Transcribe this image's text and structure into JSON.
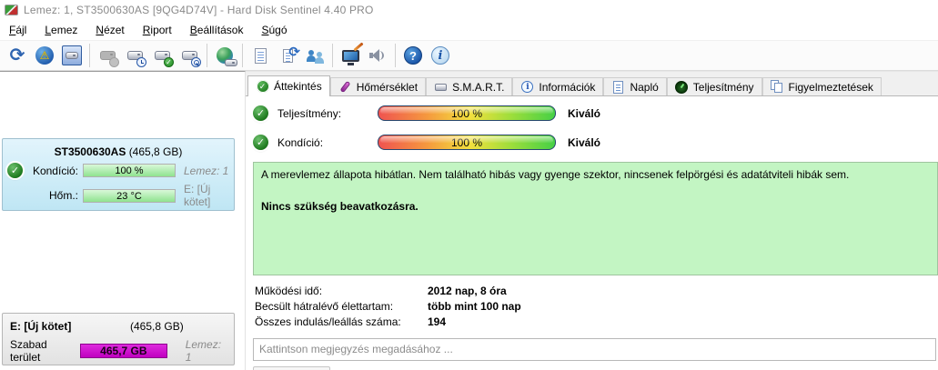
{
  "titlebar": {
    "title": "Lemez: 1, ST3500630AS [9QG4D74V]  -  Hard Disk Sentinel 4.40 PRO"
  },
  "menu": {
    "items": [
      "Fájl",
      "Lemez",
      "Nézet",
      "Riport",
      "Beállítások",
      "Súgó"
    ]
  },
  "toolbar": {
    "buttons": [
      "refresh-icon",
      "warning-icon",
      "disk-box-icon",
      "disk-gray-icon",
      "disk-clock-icon",
      "disk-check-icon",
      "disk-search-icon",
      "globe-disk-icon",
      "report-icon",
      "sync-icon",
      "users-icon",
      "monitor-pen-icon",
      "speaker-icon",
      "help-icon",
      "info-icon"
    ]
  },
  "tabs": [
    {
      "label": "Áttekintés",
      "icon": "check-circle-icon",
      "active": true
    },
    {
      "label": "Hőmérséklet",
      "icon": "thermometer-icon",
      "active": false
    },
    {
      "label": "S.M.A.R.T.",
      "icon": "disk-icon",
      "active": false
    },
    {
      "label": "Információk",
      "icon": "info-bubble-icon",
      "active": false
    },
    {
      "label": "Napló",
      "icon": "document-icon",
      "active": false
    },
    {
      "label": "Teljesítmény",
      "icon": "gauge-icon",
      "active": false
    },
    {
      "label": "Figyelmeztetések",
      "icon": "pages-icon",
      "active": false
    }
  ],
  "sidebar": {
    "disk": {
      "model": "ST3500630AS",
      "capacity": "(465,8 GB)",
      "condition_label": "Kondíció:",
      "condition_value": "100 %",
      "temperature_label": "Hőm.:",
      "temperature_value": "23 °C",
      "disk_number": "Lemez: 1",
      "volume": "E: [Új kötet]"
    },
    "partition": {
      "name": "E: [Új kötet]",
      "capacity": "(465,8 GB)",
      "free_label": "Szabad terület",
      "free_value": "465,7 GB",
      "disk_number": "Lemez: 1"
    }
  },
  "overview": {
    "performance_label": "Teljesítmény:",
    "performance_percent": "100 %",
    "performance_value": 100,
    "performance_rating": "Kiváló",
    "condition_label": "Kondíció:",
    "condition_percent": "100 %",
    "condition_value": 100,
    "condition_rating": "Kiváló",
    "status_text": "A merevlemez állapota hibátlan. Nem található hibás vagy gyenge szektor, nincsenek felpörgési és adatátviteli hibák sem.",
    "status_advice": "Nincs szükség beavatkozásra.",
    "stats": [
      {
        "label": "Működési idő:",
        "value": "2012 nap, 8 óra"
      },
      {
        "label": "Becsült hátralévő élettartam:",
        "value": "több mint 100 nap"
      },
      {
        "label": "Összes indulás/leállás száma:",
        "value": "194"
      }
    ],
    "comment_placeholder": "Kattintson megjegyzés megadásához ..."
  },
  "icons": {
    "check": "✓",
    "refresh": "⟳",
    "warning": "⚠",
    "question": "?",
    "info": "i"
  },
  "colors": {
    "status_box_green": "#c3f5c3",
    "free_space_magenta": "#cc00cc",
    "health_bar_green": "#8fe38f",
    "gauge_gradient": "red-orange-yellow-green",
    "disk_card_blue": "#cfeaf7"
  }
}
